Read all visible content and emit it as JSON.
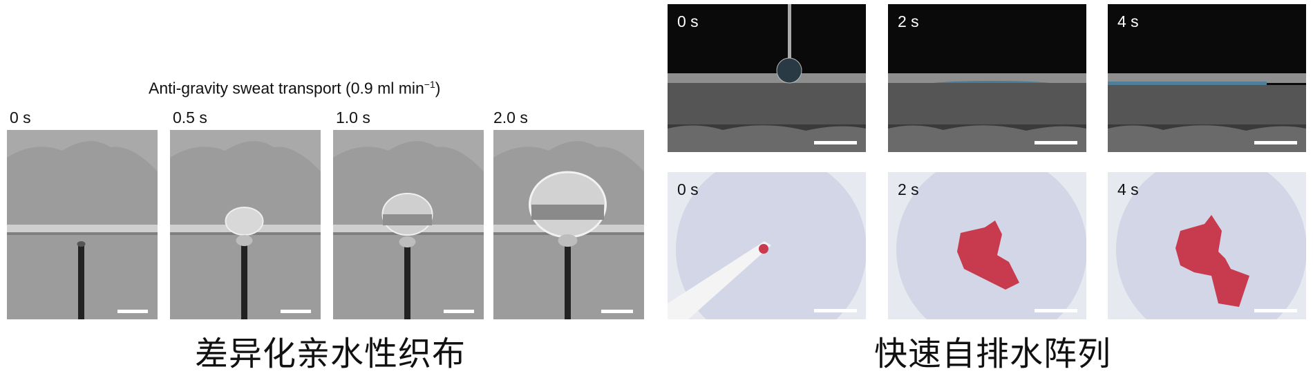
{
  "left_panel": {
    "title_main": "Anti-gravity sweat transport (0.9 ml min",
    "title_sup": "−1",
    "title_close": ")",
    "frames": [
      {
        "time": "0 s",
        "droplet": 0
      },
      {
        "time": "0.5 s",
        "droplet": 1
      },
      {
        "time": "1.0 s",
        "droplet": 2
      },
      {
        "time": "2.0 s",
        "droplet": 3
      }
    ],
    "caption": "差异化亲水性织布"
  },
  "right_panel": {
    "top_frames": [
      {
        "time": "0 s",
        "stage": 0
      },
      {
        "time": "2 s",
        "stage": 1
      },
      {
        "time": "4 s",
        "stage": 2
      }
    ],
    "bottom_frames": [
      {
        "time": "0 s",
        "stage": 0
      },
      {
        "time": "2 s",
        "stage": 1
      },
      {
        "time": "4 s",
        "stage": 2
      }
    ],
    "caption": "快速自排水阵列"
  },
  "colors": {
    "sem_bg": "#a9a9a9",
    "fabric_bg": "#d4d8e6",
    "wet_red": "#c83a4e",
    "side_black": "#0a0a0a"
  }
}
